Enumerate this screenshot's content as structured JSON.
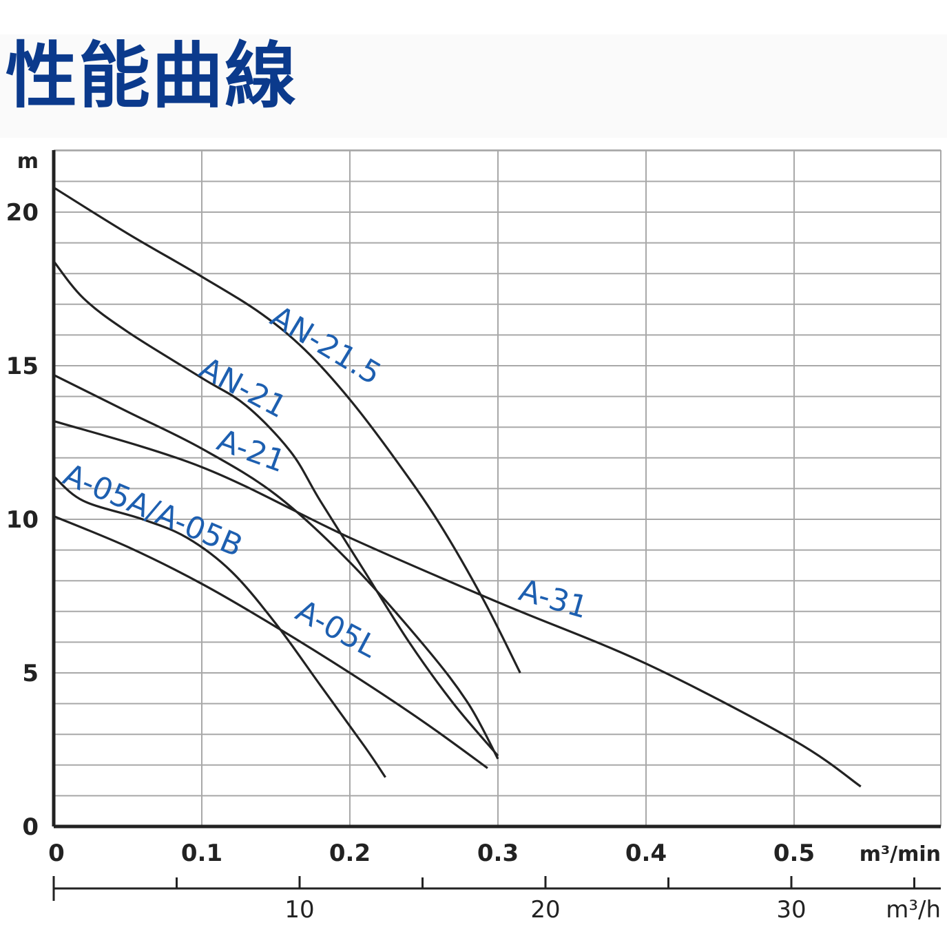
{
  "title": "性能曲線",
  "chart_data": {
    "type": "line",
    "title": "性能曲線",
    "ylabel": "m",
    "xlabel": "m³/min",
    "x2label": "m³/h",
    "xlim": [
      0,
      0.6
    ],
    "ylim": [
      0,
      22
    ],
    "x_ticks": [
      "0",
      "0.1",
      "0.2",
      "0.3",
      "0.4",
      "0.5"
    ],
    "x_tick_values": [
      0,
      0.1,
      0.2,
      0.3,
      0.4,
      0.5
    ],
    "y_ticks": [
      "0",
      "5",
      "10",
      "15",
      "20"
    ],
    "y_tick_values": [
      0,
      5,
      10,
      15,
      20
    ],
    "x2_ticks": [
      "10",
      "20",
      "30"
    ],
    "x2_tick_values": [
      10,
      20,
      30
    ],
    "x2_lim": [
      0,
      36
    ],
    "grid": true,
    "series": [
      {
        "name": "AN-21.5",
        "label_at": [
          0.145,
          16.4
        ],
        "label_angle": 31,
        "points": [
          [
            0,
            20.8
          ],
          [
            0.05,
            19.3
          ],
          [
            0.1,
            17.9
          ],
          [
            0.14,
            16.7
          ],
          [
            0.17,
            15.5
          ],
          [
            0.2,
            13.9
          ],
          [
            0.23,
            12.0
          ],
          [
            0.26,
            9.9
          ],
          [
            0.29,
            7.4
          ],
          [
            0.315,
            5.0
          ]
        ]
      },
      {
        "name": "AN-21",
        "label_at": [
          0.097,
          14.7
        ],
        "label_angle": 28,
        "points": [
          [
            0,
            18.4
          ],
          [
            0.02,
            17.2
          ],
          [
            0.05,
            16.1
          ],
          [
            0.1,
            14.6
          ],
          [
            0.13,
            13.7
          ],
          [
            0.16,
            12.2
          ],
          [
            0.18,
            10.6
          ],
          [
            0.21,
            8.3
          ],
          [
            0.24,
            6.0
          ],
          [
            0.27,
            4.0
          ],
          [
            0.3,
            2.3
          ]
        ]
      },
      {
        "name": "A-21",
        "label_at": [
          0.109,
          12.3
        ],
        "label_angle": 20,
        "points": [
          [
            0,
            14.7
          ],
          [
            0.05,
            13.5
          ],
          [
            0.1,
            12.3
          ],
          [
            0.15,
            10.8
          ],
          [
            0.2,
            8.6
          ],
          [
            0.25,
            5.9
          ],
          [
            0.28,
            4.0
          ],
          [
            0.3,
            2.2
          ]
        ]
      },
      {
        "name": "A-31",
        "label_at": [
          0.313,
          7.4
        ],
        "label_angle": 16,
        "points": [
          [
            0,
            13.2
          ],
          [
            0.1,
            11.7
          ],
          [
            0.2,
            9.4
          ],
          [
            0.3,
            7.3
          ],
          [
            0.4,
            5.3
          ],
          [
            0.5,
            2.8
          ],
          [
            0.545,
            1.3
          ]
        ]
      },
      {
        "name": "A-05A/A-05B",
        "label_at": [
          0.005,
          11.2
        ],
        "label_angle": 23,
        "points": [
          [
            0,
            11.4
          ],
          [
            0.02,
            10.6
          ],
          [
            0.06,
            10.0
          ],
          [
            0.09,
            9.4
          ],
          [
            0.12,
            8.3
          ],
          [
            0.15,
            6.6
          ],
          [
            0.18,
            4.6
          ],
          [
            0.21,
            2.6
          ],
          [
            0.224,
            1.6
          ]
        ]
      },
      {
        "name": "A-05L",
        "label_at": [
          0.162,
          6.8
        ],
        "label_angle": 28,
        "points": [
          [
            0,
            10.1
          ],
          [
            0.05,
            9.1
          ],
          [
            0.1,
            7.9
          ],
          [
            0.15,
            6.5
          ],
          [
            0.2,
            5.0
          ],
          [
            0.25,
            3.4
          ],
          [
            0.293,
            1.9
          ]
        ]
      }
    ],
    "colors": {
      "line": "#222222",
      "label": "#1d5fb0",
      "grid": "#a8a8a8",
      "axis": "#222222"
    }
  }
}
